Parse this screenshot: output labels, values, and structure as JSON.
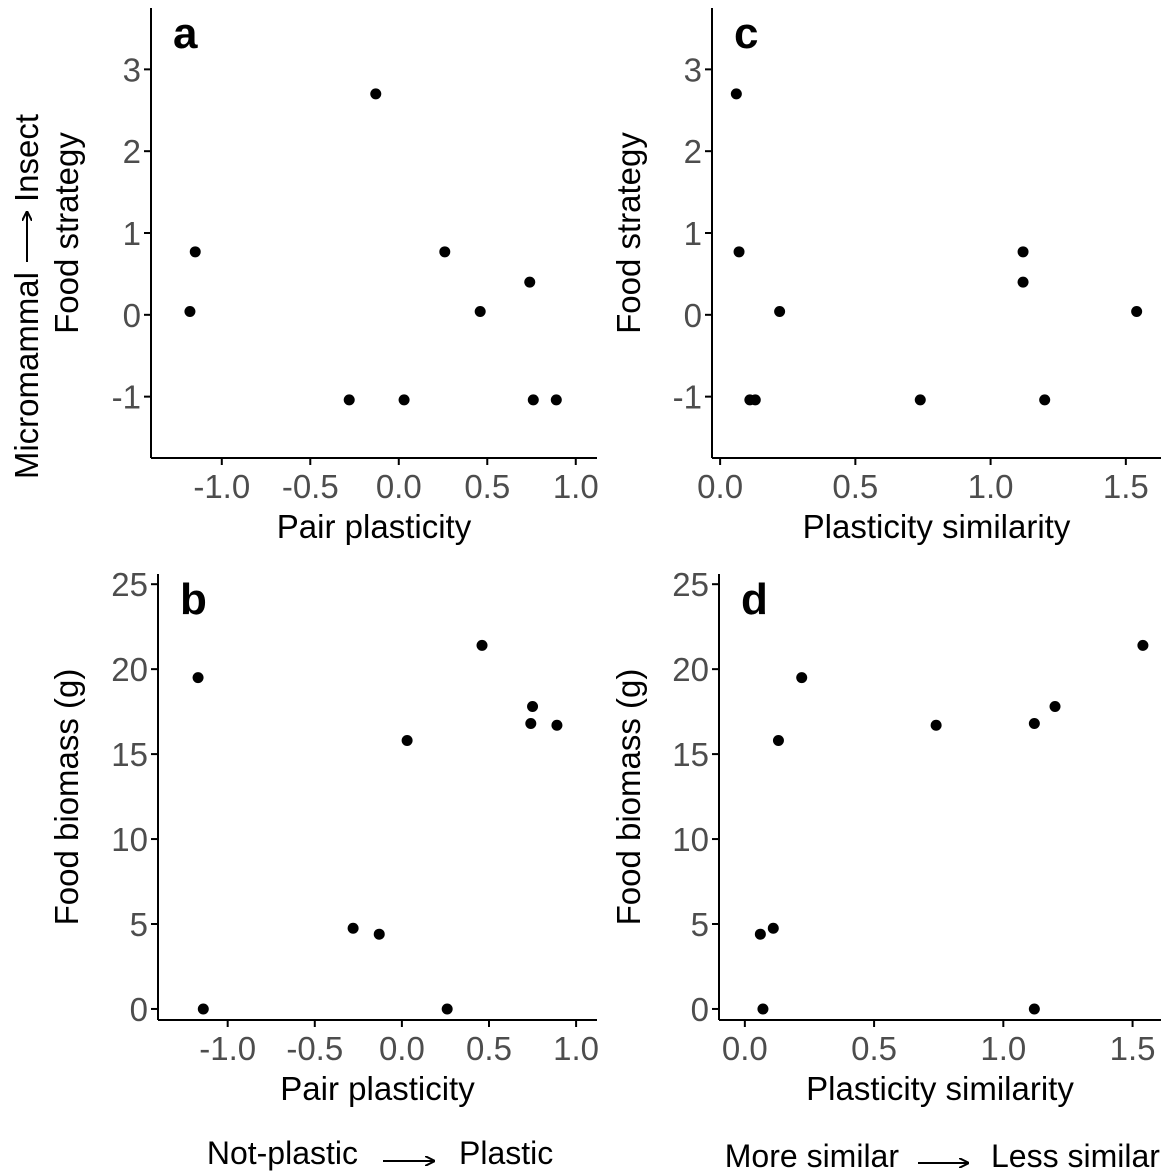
{
  "colors": {
    "point": "#000000",
    "axis": "#000000",
    "tick_label": "#4d4d4d",
    "background": "#ffffff"
  },
  "side_note": {
    "left": "Micromammal",
    "right": "Insect"
  },
  "bottom_notes": {
    "left": {
      "from": "Not-plastic",
      "to": "Plastic"
    },
    "right": {
      "from": "More similar",
      "to": "Less similar"
    }
  },
  "chart_data": [
    {
      "panel": "a",
      "type": "scatter",
      "xlabel": "Pair plasticity",
      "ylabel": "Food strategy",
      "xlim": [
        -1.4,
        1.12
      ],
      "ylim": [
        -1.75,
        3.75
      ],
      "xticks": [
        -1.0,
        -0.5,
        0.0,
        0.5,
        1.0
      ],
      "xtick_labels": [
        "-1.0",
        "-0.5",
        "0.0",
        "0.5",
        "1.0"
      ],
      "yticks": [
        -1,
        0,
        1,
        2,
        3
      ],
      "ytick_labels": [
        "-1",
        "0",
        "1",
        "2",
        "3"
      ],
      "grid": false,
      "points": [
        {
          "x": -1.18,
          "y": 0.04
        },
        {
          "x": -1.15,
          "y": 0.77
        },
        {
          "x": -0.28,
          "y": -1.04
        },
        {
          "x": -0.13,
          "y": 2.7
        },
        {
          "x": 0.03,
          "y": -1.04
        },
        {
          "x": 0.26,
          "y": 0.77
        },
        {
          "x": 0.46,
          "y": 0.04
        },
        {
          "x": 0.74,
          "y": 0.4
        },
        {
          "x": 0.76,
          "y": -1.04
        },
        {
          "x": 0.89,
          "y": -1.04
        }
      ]
    },
    {
      "panel": "b",
      "type": "scatter",
      "xlabel": "Pair plasticity",
      "ylabel": "Food biomass (g)",
      "xlim": [
        -1.4,
        1.12
      ],
      "ylim": [
        -0.65,
        25.6
      ],
      "xticks": [
        -1.0,
        -0.5,
        0.0,
        0.5,
        1.0
      ],
      "xtick_labels": [
        "-1.0",
        "-0.5",
        "0.0",
        "0.5",
        "1.0"
      ],
      "yticks": [
        0,
        5,
        10,
        15,
        20,
        25
      ],
      "ytick_labels": [
        "0",
        "5",
        "10",
        "15",
        "20",
        "25"
      ],
      "grid": false,
      "points": [
        {
          "x": -1.17,
          "y": 19.5
        },
        {
          "x": -1.14,
          "y": 0.0
        },
        {
          "x": -0.28,
          "y": 4.75
        },
        {
          "x": -0.13,
          "y": 4.4
        },
        {
          "x": 0.03,
          "y": 15.8
        },
        {
          "x": 0.26,
          "y": 0.0
        },
        {
          "x": 0.46,
          "y": 21.4
        },
        {
          "x": 0.74,
          "y": 16.8
        },
        {
          "x": 0.75,
          "y": 17.8
        },
        {
          "x": 0.89,
          "y": 16.7
        }
      ]
    },
    {
      "panel": "c",
      "type": "scatter",
      "xlabel": "Plasticity similarity",
      "ylabel": "Food strategy",
      "xlim": [
        -0.03,
        1.63
      ],
      "ylim": [
        -1.75,
        3.75
      ],
      "xticks": [
        0.0,
        0.5,
        1.0,
        1.5
      ],
      "xtick_labels": [
        "0.0",
        "0.5",
        "1.0",
        "1.5"
      ],
      "yticks": [
        -1,
        0,
        1,
        2,
        3
      ],
      "ytick_labels": [
        "-1",
        "0",
        "1",
        "2",
        "3"
      ],
      "grid": false,
      "points": [
        {
          "x": 0.06,
          "y": 2.7
        },
        {
          "x": 0.07,
          "y": 0.77
        },
        {
          "x": 0.11,
          "y": -1.04
        },
        {
          "x": 0.13,
          "y": -1.04
        },
        {
          "x": 0.22,
          "y": 0.04
        },
        {
          "x": 0.74,
          "y": -1.04
        },
        {
          "x": 1.12,
          "y": 0.77
        },
        {
          "x": 1.12,
          "y": 0.4
        },
        {
          "x": 1.2,
          "y": -1.04
        },
        {
          "x": 1.54,
          "y": 0.04
        }
      ]
    },
    {
      "panel": "d",
      "type": "scatter",
      "xlabel": "Plasticity similarity",
      "ylabel": "Food biomass (g)",
      "xlim": [
        -0.1,
        1.61
      ],
      "ylim": [
        -0.65,
        25.6
      ],
      "xticks": [
        0.0,
        0.5,
        1.0,
        1.5
      ],
      "xtick_labels": [
        "0.0",
        "0.5",
        "1.0",
        "1.5"
      ],
      "yticks": [
        0,
        5,
        10,
        15,
        20,
        25
      ],
      "ytick_labels": [
        "0",
        "5",
        "10",
        "15",
        "20",
        "25"
      ],
      "grid": false,
      "points": [
        {
          "x": 0.06,
          "y": 4.4
        },
        {
          "x": 0.07,
          "y": 0.0
        },
        {
          "x": 0.11,
          "y": 4.75
        },
        {
          "x": 0.13,
          "y": 15.8
        },
        {
          "x": 0.22,
          "y": 19.5
        },
        {
          "x": 0.74,
          "y": 16.7
        },
        {
          "x": 1.12,
          "y": 16.8
        },
        {
          "x": 1.12,
          "y": 0.0
        },
        {
          "x": 1.2,
          "y": 17.8
        },
        {
          "x": 1.54,
          "y": 21.4
        }
      ]
    }
  ]
}
